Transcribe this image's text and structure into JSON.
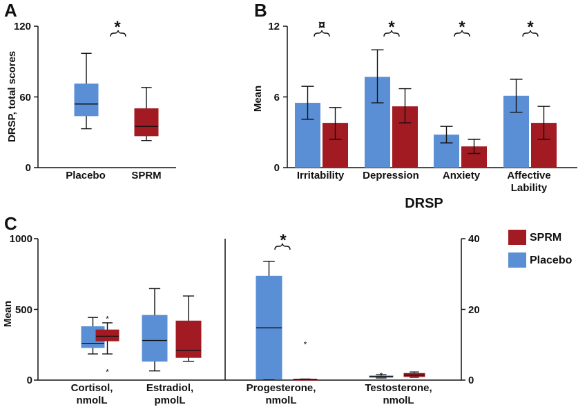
{
  "colors": {
    "placebo": "#5a8fd6",
    "sprm": "#a31b22"
  },
  "legend": [
    {
      "name": "SPRM",
      "color": "#a31b22"
    },
    {
      "name": "Placebo",
      "color": "#5a8fd6"
    }
  ],
  "chart_data": [
    {
      "panel": "A",
      "type": "box",
      "ylabel": "DRSP, total scores",
      "ylim": [
        0,
        120
      ],
      "yticks": [
        "0",
        "60",
        "120"
      ],
      "categories": [
        "Placebo",
        "SPRM"
      ],
      "boxes": [
        {
          "name": "Placebo",
          "min": 33,
          "q1": 44,
          "median": 54,
          "q3": 71,
          "max": 97,
          "color": "placebo"
        },
        {
          "name": "SPRM",
          "min": 23,
          "q1": 27,
          "median": 35,
          "q3": 50,
          "max": 68,
          "color": "sprm"
        }
      ],
      "significance": "*"
    },
    {
      "panel": "B",
      "type": "bar",
      "ylabel": "Mean",
      "xlabel": "DRSP",
      "ylim": [
        0,
        12
      ],
      "yticks": [
        "0",
        "6",
        "12"
      ],
      "categories": [
        "Irritability",
        "Depression",
        "Anxiety",
        "Affective Lability"
      ],
      "series": [
        {
          "color": "placebo",
          "values": [
            5.5,
            7.7,
            2.8,
            6.1
          ],
          "err_low": [
            4.1,
            5.5,
            2.1,
            4.7
          ],
          "err_high": [
            6.9,
            10.0,
            3.5,
            7.5
          ]
        },
        {
          "color": "sprm",
          "values": [
            3.8,
            5.2,
            1.8,
            3.8
          ],
          "err_low": [
            2.4,
            3.8,
            1.2,
            2.4
          ],
          "err_high": [
            5.1,
            6.7,
            2.4,
            5.2
          ]
        }
      ],
      "significance": [
        "¤",
        "*",
        "*",
        "*"
      ]
    },
    {
      "panel": "C",
      "type": "box",
      "ylabel": "Mean",
      "ylim_left": [
        0,
        1000
      ],
      "yticks_left": [
        "0",
        "500",
        "1000"
      ],
      "ylim_right": [
        0,
        40
      ],
      "yticks_right": [
        "0",
        "20",
        "40"
      ],
      "categories": [
        "Cortisol, nmolL",
        "Estradiol, pmolL",
        "Progesterone, nmolL",
        "Testosterone, nmolL"
      ],
      "boxes": [
        {
          "cat": 0,
          "axis": "left",
          "color": "placebo",
          "min": 185,
          "q1": 230,
          "median": 260,
          "q3": 378,
          "max": 443,
          "outliers": []
        },
        {
          "cat": 0,
          "axis": "left",
          "color": "sprm",
          "min": 185,
          "q1": 277,
          "median": 310,
          "q3": 355,
          "max": 405,
          "outliers": [
            447,
            70
          ]
        },
        {
          "cat": 1,
          "axis": "left",
          "color": "placebo",
          "min": 65,
          "q1": 133,
          "median": 280,
          "q3": 458,
          "max": 647,
          "outliers": []
        },
        {
          "cat": 1,
          "axis": "left",
          "color": "sprm",
          "min": 133,
          "q1": 160,
          "median": 210,
          "q3": 418,
          "max": 595,
          "outliers": []
        },
        {
          "cat": 2,
          "axis": "right",
          "color": "placebo",
          "min": 0.2,
          "q1": 0.3,
          "median": 14.8,
          "q3": 29.4,
          "max": 33.6,
          "outliers": []
        },
        {
          "cat": 2,
          "axis": "right",
          "color": "sprm",
          "min": 0.1,
          "q1": 0.15,
          "median": 0.2,
          "q3": 0.25,
          "max": 0.3,
          "outliers": [
            10.6
          ]
        },
        {
          "cat": 3,
          "axis": "right",
          "color": "placebo",
          "min": 0.6,
          "q1": 0.8,
          "median": 1.0,
          "q3": 1.2,
          "max": 1.5,
          "outliers": [
            1.9
          ]
        },
        {
          "cat": 3,
          "axis": "right",
          "color": "sprm",
          "min": 0.8,
          "q1": 1.0,
          "median": 1.4,
          "q3": 1.9,
          "max": 2.3,
          "outliers": []
        }
      ],
      "significance": "*"
    }
  ],
  "panels": {
    "a": "A",
    "b": "B",
    "c": "C"
  },
  "text": {
    "a_ylabel": "DRSP, total scores",
    "a_y0": "0",
    "a_y1": "60",
    "a_y2": "120",
    "a_cat0": "Placebo",
    "a_cat1": "SPRM",
    "a_sig": "*",
    "b_ylabel": "Mean",
    "b_xlabel": "DRSP",
    "b_y0": "0",
    "b_y1": "6",
    "b_y2": "12",
    "b_cat0": "Irritability",
    "b_cat1": "Depression",
    "b_cat2": "Anxiety",
    "b_cat3a": "Affective",
    "b_cat3b": "Lability",
    "b_sig0": "¤",
    "b_sig1": "*",
    "b_sig2": "*",
    "b_sig3": "*",
    "c_ylabel": "Mean",
    "c_yl0": "0",
    "c_yl1": "500",
    "c_yl2": "1000",
    "c_yr0": "0",
    "c_yr1": "20",
    "c_yr2": "40",
    "c_cat0a": "Cortisol,",
    "c_cat0b": "nmolL",
    "c_cat1a": "Estradiol,",
    "c_cat1b": "pmolL",
    "c_cat2a": "Progesterone,",
    "c_cat2b": "nmolL",
    "c_cat3a": "Testosterone,",
    "c_cat3b": "nmolL",
    "c_sig": "*"
  }
}
